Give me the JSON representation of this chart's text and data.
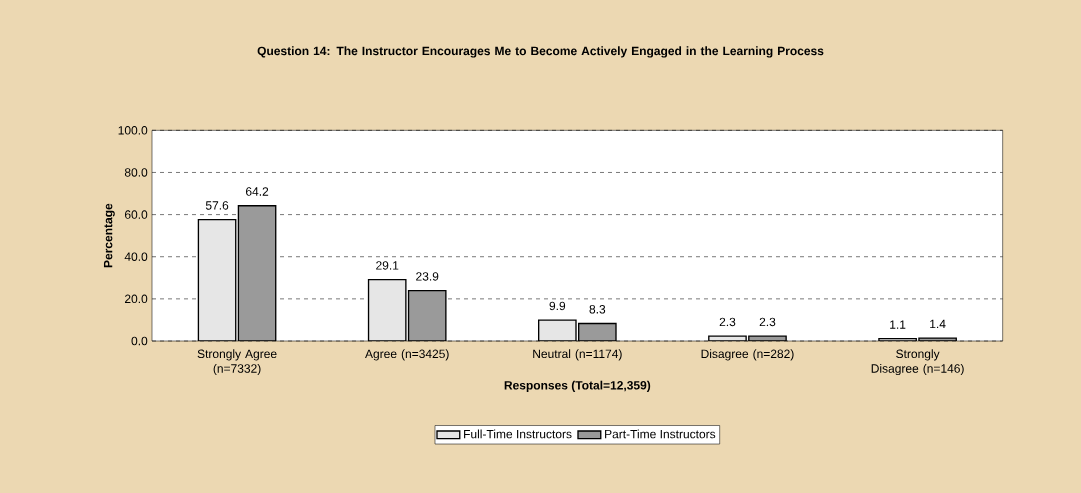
{
  "chart_data": {
    "type": "bar",
    "title": "Question 14:  The Instructor Encourages Me to Become Actively Engaged in the Learning Process",
    "xlabel": "Responses (Total=12,359)",
    "ylabel": "Percentage",
    "categories": [
      "Strongly Agree (n=7332)",
      "Agree (n=3425)",
      "Neutral (n=1174)",
      "Disagree (n=282)",
      "Strongly Disagree (n=146)"
    ],
    "series": [
      {
        "name": "Full-Time Instructors",
        "color": "#e6e6e6",
        "values": [
          57.6,
          29.1,
          9.9,
          2.3,
          1.1
        ]
      },
      {
        "name": "Part-Time Instructors",
        "color": "#9a9a9a",
        "values": [
          64.2,
          23.9,
          8.3,
          2.3,
          1.4
        ]
      }
    ],
    "ylim": [
      0,
      100
    ],
    "yticks": [
      {
        "value": 0,
        "label": "0.0"
      },
      {
        "value": 20,
        "label": "20.0"
      },
      {
        "value": 40,
        "label": "40.0"
      },
      {
        "value": 60,
        "label": "60.0"
      },
      {
        "value": 80,
        "label": "80.0"
      },
      {
        "value": 100,
        "label": "100.0"
      }
    ],
    "grid": "y",
    "legend": "bottom",
    "data_labels": true
  }
}
